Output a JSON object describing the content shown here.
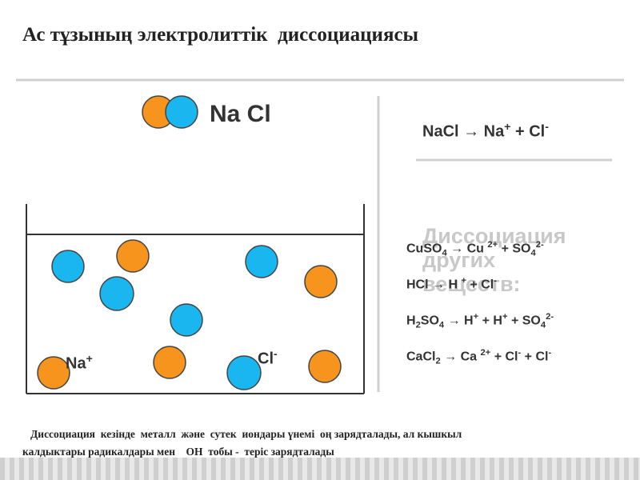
{
  "title": "Ас тұзының электролиттік  диссоциациясы",
  "formula_label": "Na Cl",
  "main_equation": [
    {
      "text": "NaCl → Na",
      "pos": "base"
    },
    {
      "text": "+",
      "pos": "sup"
    },
    {
      "text": " + Cl",
      "pos": "base"
    },
    {
      "text": "-",
      "pos": "sup"
    }
  ],
  "heading_lines": [
    "Диссоциация",
    "других",
    "веществ:"
  ],
  "ions": {
    "sodium": {
      "symbol": "Na",
      "charge": "+"
    },
    "chlorine": {
      "symbol": "Cl",
      "charge": "-"
    }
  },
  "equations": [
    [
      {
        "text": "CuSO",
        "pos": "base"
      },
      {
        "text": "4",
        "pos": "sub"
      },
      {
        "text": " → Cu ",
        "pos": "base"
      },
      {
        "text": "2+",
        "pos": "sup"
      },
      {
        "text": " + SO",
        "pos": "base"
      },
      {
        "text": "4",
        "pos": "sub"
      },
      {
        "text": "2-",
        "pos": "sup"
      }
    ],
    [
      {
        "text": "HCl → H ",
        "pos": "base"
      },
      {
        "text": "+",
        "pos": "sup"
      },
      {
        "text": " + Cl",
        "pos": "base"
      },
      {
        "text": "-",
        "pos": "sup"
      }
    ],
    [
      {
        "text": "H",
        "pos": "base"
      },
      {
        "text": "2",
        "pos": "sub"
      },
      {
        "text": "SO",
        "pos": "base"
      },
      {
        "text": "4",
        "pos": "sub"
      },
      {
        "text": " → H",
        "pos": "base"
      },
      {
        "text": "+",
        "pos": "sup"
      },
      {
        "text": " + H",
        "pos": "base"
      },
      {
        "text": "+",
        "pos": "sup"
      },
      {
        "text": " + SO",
        "pos": "base"
      },
      {
        "text": "4",
        "pos": "sub"
      },
      {
        "text": "2-",
        "pos": "sup"
      }
    ],
    [
      {
        "text": "CaCl",
        "pos": "base"
      },
      {
        "text": "2",
        "pos": "sub"
      },
      {
        "text": " → Ca ",
        "pos": "base"
      },
      {
        "text": "2+",
        "pos": "sup"
      },
      {
        "text": " + Cl",
        "pos": "base"
      },
      {
        "text": "-",
        "pos": "sup"
      },
      {
        "text": " + Cl",
        "pos": "base"
      },
      {
        "text": "-",
        "pos": "sup"
      }
    ]
  ],
  "footer_lines": [
    "Диссоциация  кезінде  металл  және  сутек  иондары үнемі  оң зарядталады, ал кышкыл",
    "калдыктары радикалдары мен    ОН  тобы -  теріс зарядталады"
  ]
}
